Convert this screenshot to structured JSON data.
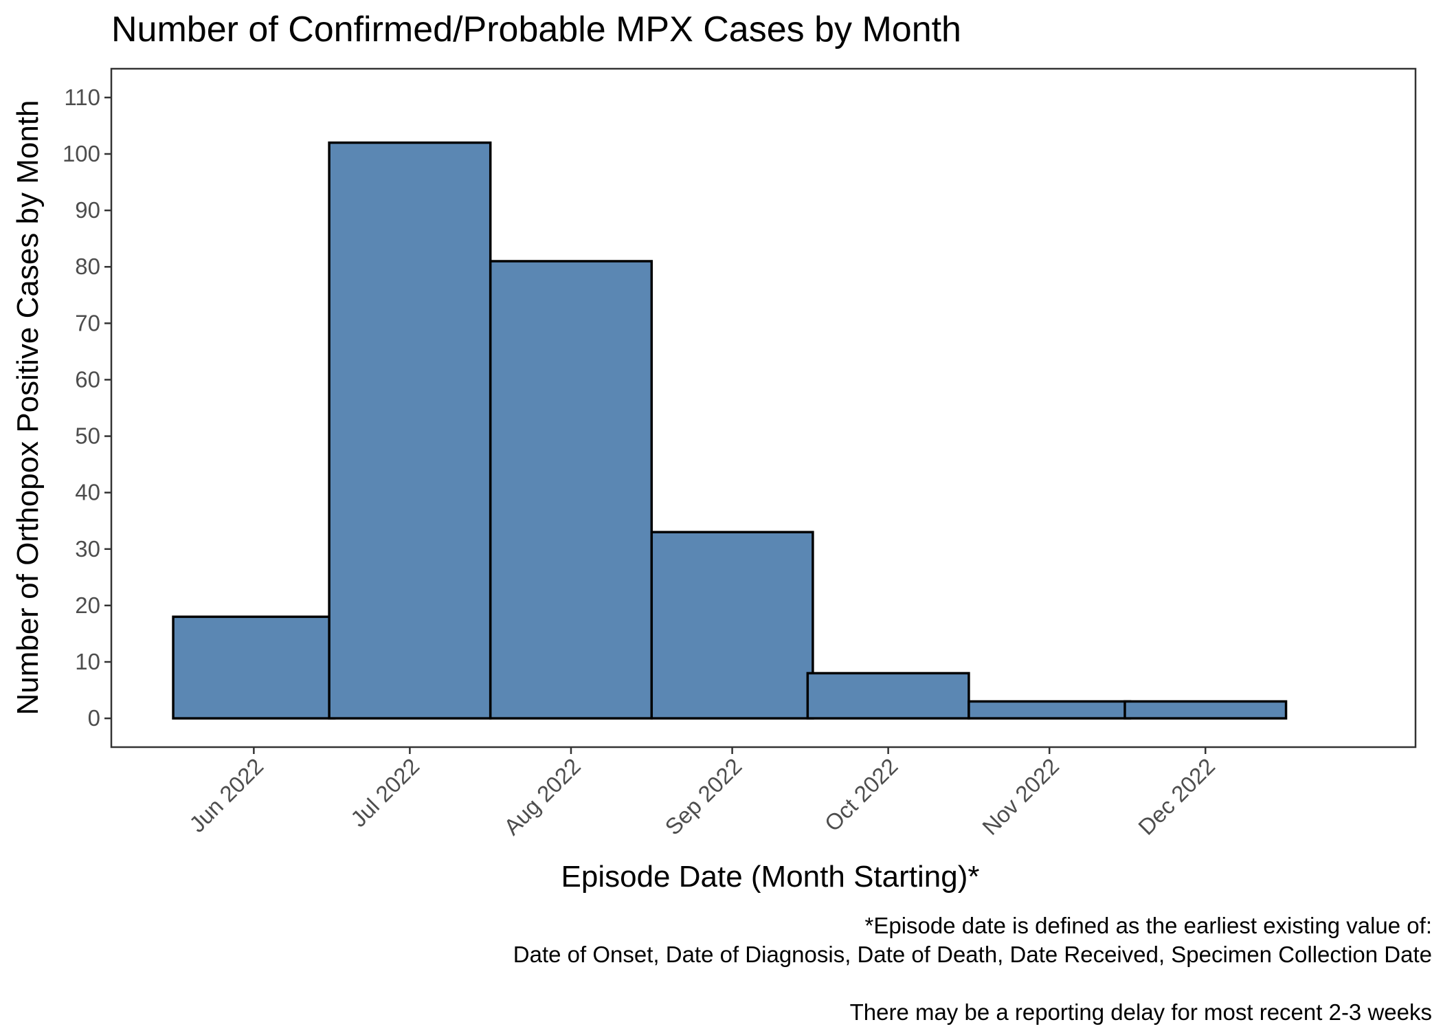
{
  "chart_data": {
    "type": "bar",
    "title": "Number of Confirmed/Probable MPX Cases by Month",
    "xlabel": "Episode Date (Month Starting)*",
    "ylabel": "Number of Orthopox Positive Cases by Month",
    "categories": [
      "Jun 2022",
      "Jul 2022",
      "Aug 2022",
      "Sep 2022",
      "Oct 2022",
      "Nov 2022",
      "Dec 2022"
    ],
    "x_dates": [
      "2022-06-01",
      "2022-07-01",
      "2022-08-01",
      "2022-09-01",
      "2022-10-01",
      "2022-11-01",
      "2022-12-01"
    ],
    "values": [
      18,
      102,
      81,
      33,
      8,
      3,
      3
    ],
    "ylim": [
      -5.1,
      115.1
    ],
    "yticks": [
      0,
      10,
      20,
      30,
      40,
      50,
      60,
      70,
      80,
      90,
      100,
      110
    ],
    "grid": false,
    "legend": "none",
    "bar_fill": "#5b87b3",
    "bar_stroke": "#000000",
    "caption": [
      "*Episode date is defined as the earliest existing value of:",
      "Date of Onset, Date of Diagnosis, Date of Death, Date Received, Specimen Collection Date",
      "",
      "There may be a reporting delay for most recent 2-3 weeks"
    ]
  }
}
